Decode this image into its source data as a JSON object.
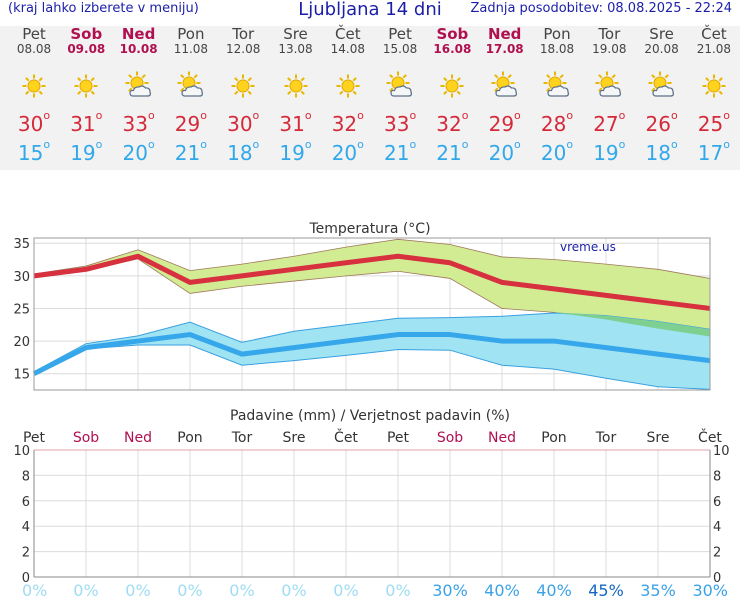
{
  "header": {
    "left": "(kraj lahko izberete v meniju)",
    "title": "Ljubljana 14 dni",
    "right": "Zadnja posodobitev: 08.08.2025 - 22:24"
  },
  "forecast": {
    "days": [
      {
        "name": "Pet",
        "date": "08.08",
        "weekend": false,
        "icon": "sun-icon",
        "tmax": "30",
        "tmin": "15"
      },
      {
        "name": "Sob",
        "date": "09.08",
        "weekend": true,
        "icon": "sun-icon",
        "tmax": "31",
        "tmin": "19"
      },
      {
        "name": "Ned",
        "date": "10.08",
        "weekend": true,
        "icon": "sun-cloud-icon",
        "tmax": "33",
        "tmin": "20"
      },
      {
        "name": "Pon",
        "date": "11.08",
        "weekend": false,
        "icon": "sun-cloud-icon",
        "tmax": "29",
        "tmin": "21"
      },
      {
        "name": "Tor",
        "date": "12.08",
        "weekend": false,
        "icon": "sun-icon",
        "tmax": "30",
        "tmin": "18"
      },
      {
        "name": "Sre",
        "date": "13.08",
        "weekend": false,
        "icon": "sun-icon",
        "tmax": "31",
        "tmin": "19"
      },
      {
        "name": "Čet",
        "date": "14.08",
        "weekend": false,
        "icon": "sun-icon",
        "tmax": "32",
        "tmin": "20"
      },
      {
        "name": "Pet",
        "date": "15.08",
        "weekend": false,
        "icon": "sun-cloud-icon",
        "tmax": "33",
        "tmin": "21"
      },
      {
        "name": "Sob",
        "date": "16.08",
        "weekend": true,
        "icon": "sun-icon",
        "tmax": "32",
        "tmin": "21"
      },
      {
        "name": "Ned",
        "date": "17.08",
        "weekend": true,
        "icon": "sun-cloud-icon",
        "tmax": "29",
        "tmin": "20"
      },
      {
        "name": "Pon",
        "date": "18.08",
        "weekend": false,
        "icon": "sun-cloud-icon",
        "tmax": "28",
        "tmin": "20"
      },
      {
        "name": "Tor",
        "date": "19.08",
        "weekend": false,
        "icon": "sun-cloud-icon",
        "tmax": "27",
        "tmin": "19"
      },
      {
        "name": "Sre",
        "date": "20.08",
        "weekend": false,
        "icon": "sun-cloud-icon",
        "tmax": "26",
        "tmin": "18"
      },
      {
        "name": "Čet",
        "date": "21.08",
        "weekend": false,
        "icon": "sun-icon",
        "tmax": "25",
        "tmin": "17"
      }
    ]
  },
  "chart_data": [
    {
      "type": "line",
      "title": "Temperatura (°C)",
      "watermark": "vreme.us",
      "x": [
        "Pet",
        "Sob",
        "Ned",
        "Pon",
        "Tor",
        "Sre",
        "Čet",
        "Pet",
        "Sob",
        "Ned",
        "Pon",
        "Tor",
        "Sre",
        "Čet"
      ],
      "ylim": [
        12.5,
        35.8
      ],
      "yticks": [
        15,
        20,
        25,
        30,
        35
      ],
      "grid": true,
      "series": [
        {
          "values": [
            30,
            31,
            33,
            29,
            30,
            31,
            32,
            33,
            32,
            29,
            28,
            27,
            26,
            25
          ],
          "color": "#d7303f",
          "band_low": [
            30,
            30.8,
            32.6,
            27.3,
            28.4,
            29.2,
            30.0,
            30.7,
            29.6,
            25.0,
            24.4,
            23.3,
            21.9,
            20.7
          ],
          "band_high": [
            30.3,
            31.5,
            34.0,
            30.8,
            31.8,
            33.0,
            34.4,
            35.6,
            34.8,
            32.9,
            32.5,
            31.8,
            31.0,
            29.6
          ]
        },
        {
          "values": [
            15,
            19,
            20,
            21,
            18,
            19,
            20,
            21,
            21,
            20,
            20,
            19,
            18,
            17
          ],
          "color": "#36a7ea",
          "band_low": [
            15,
            18.8,
            19.4,
            19.4,
            16.3,
            17.0,
            17.8,
            18.7,
            18.6,
            16.3,
            15.7,
            14.3,
            13.0,
            12.6
          ],
          "band_high": [
            15.3,
            19.6,
            20.8,
            22.9,
            19.8,
            21.5,
            22.5,
            23.5,
            23.6,
            23.8,
            24.3,
            23.9,
            23.0,
            21.8
          ]
        }
      ],
      "band_colors": {
        "max": "#d2ec94",
        "min": "#a0e4f3",
        "overlap": "#7ed091"
      }
    },
    {
      "type": "bar",
      "title": "Padavine (mm) / Verjetnost padavin (%)",
      "x": [
        "Pet",
        "Sob",
        "Ned",
        "Pon",
        "Tor",
        "Sre",
        "Čet",
        "Pet",
        "Sob",
        "Ned",
        "Pon",
        "Tor",
        "Sre",
        "Čet"
      ],
      "x_weekend": [
        false,
        true,
        true,
        false,
        false,
        false,
        false,
        false,
        true,
        true,
        false,
        false,
        false,
        false
      ],
      "ylim": [
        0,
        10
      ],
      "yticks": [
        0,
        2,
        4,
        6,
        8,
        10
      ],
      "values": [
        0,
        0,
        0,
        0,
        0,
        0,
        0,
        0,
        0,
        0,
        0,
        0,
        0,
        0
      ],
      "probability": [
        "0%",
        "0%",
        "0%",
        "0%",
        "0%",
        "0%",
        "0%",
        "0%",
        "30%",
        "40%",
        "40%",
        "45%",
        "35%",
        "30%"
      ],
      "probability_colors": {
        "zero": "#9fdcf3",
        "low": "#3aa2e8",
        "high": "#1467c0"
      }
    }
  ]
}
